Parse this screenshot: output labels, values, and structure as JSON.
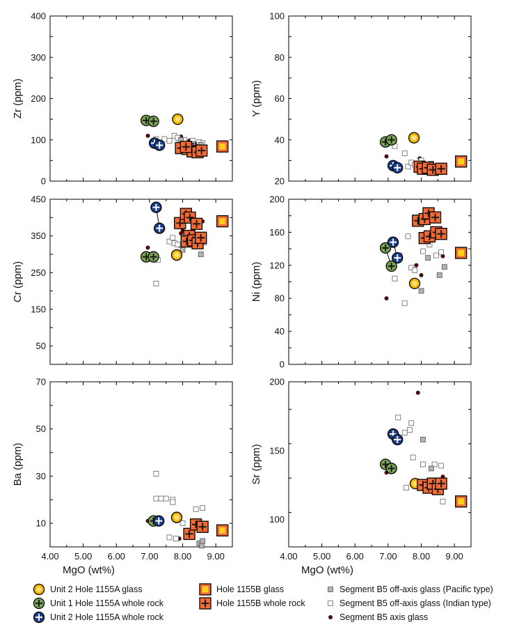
{
  "figure": {
    "xlabel": "MgO (wt%)",
    "xticks": [
      "4.00",
      "5.00",
      "6.00",
      "7.00",
      "8.00",
      "9.00"
    ]
  },
  "colors": {
    "unit2_glass_fill": "#f6b800",
    "unit2_glass_core": "#ffe27a",
    "unit1_wr_fill": "#7aa653",
    "unit2_wr_fill": "#1c3f8c",
    "hole1155b_fill": "#f26a35",
    "hole1155b_glass_core": "#ffd11a",
    "pacific": "#b3b3b3",
    "axis_glass": "#4a0d0d"
  },
  "legend": [
    {
      "key": "unit2_glass",
      "label": "Unit 2 Hole 1155A glass"
    },
    {
      "key": "unit1_wr",
      "label": "Unit 1 Hole 1155A whole rock"
    },
    {
      "key": "unit2_wr",
      "label": "Unit 2 Hole 1155A whole rock"
    },
    {
      "key": "hole1155b_glass",
      "label": "Hole 1155B glass"
    },
    {
      "key": "hole1155b_wr",
      "label": "Hole 1155B whole rock"
    },
    {
      "key": "pacific",
      "label": "Segment B5 off-axis glass (Pacific type)"
    },
    {
      "key": "indian",
      "label": "Segment B5 off-axis glass (Indian type)"
    },
    {
      "key": "axis",
      "label": "Segment B5 axis glass"
    }
  ],
  "chart_data": [
    {
      "type": "scatter",
      "id": "zr",
      "ylabel": "Zr (ppm)",
      "xlim": [
        4,
        9.5
      ],
      "ylim": [
        0,
        400
      ],
      "yticks": [
        "0",
        "100",
        "200",
        "300",
        "400"
      ],
      "series": {
        "unit2_glass": [
          [
            7.85,
            150
          ]
        ],
        "unit1_wr": [
          [
            6.9,
            147
          ],
          [
            7.12,
            145
          ]
        ],
        "unit2_wr": [
          [
            7.15,
            92
          ],
          [
            7.3,
            87
          ]
        ],
        "hole1155b_glass": [
          [
            9.2,
            84
          ]
        ],
        "hole1155b_wr": [
          [
            7.95,
            80
          ],
          [
            8.15,
            78
          ],
          [
            8.3,
            72
          ],
          [
            8.45,
            70
          ],
          [
            8.57,
            74
          ],
          [
            8.1,
            83
          ]
        ],
        "pacific": [
          [
            7.95,
            100
          ],
          [
            8.3,
            90
          ],
          [
            8.55,
            88
          ]
        ],
        "indian": [
          [
            7.2,
            102
          ],
          [
            7.45,
            102
          ],
          [
            7.6,
            98
          ],
          [
            7.75,
            110
          ],
          [
            7.9,
            95
          ],
          [
            8.05,
            100
          ],
          [
            8.3,
            98
          ],
          [
            8.5,
            95
          ],
          [
            8.6,
            92
          ],
          [
            7.85,
            105
          ]
        ],
        "axis": [
          [
            6.95,
            110
          ],
          [
            7.95,
            108
          ],
          [
            8.2,
            98
          ],
          [
            8.4,
            90
          ],
          [
            8.55,
            95
          ]
        ]
      }
    },
    {
      "type": "scatter",
      "id": "y",
      "ylabel": "Y (ppm)",
      "xlim": [
        4,
        9.5
      ],
      "ylim": [
        20,
        100
      ],
      "yticks": [
        "20",
        "40",
        "60",
        "80",
        "100"
      ],
      "series": {
        "unit2_glass": [
          [
            7.78,
            41
          ]
        ],
        "unit1_wr": [
          [
            6.92,
            39
          ],
          [
            7.1,
            40
          ]
        ],
        "unit2_wr": [
          [
            7.15,
            27.5
          ],
          [
            7.28,
            26.5
          ]
        ],
        "hole1155b_glass": [
          [
            9.2,
            29.5
          ]
        ],
        "hole1155b_wr": [
          [
            7.95,
            27
          ],
          [
            8.05,
            26
          ],
          [
            8.2,
            26.5
          ],
          [
            8.35,
            25.5
          ],
          [
            8.6,
            26
          ]
        ],
        "pacific": [
          [
            8.3,
            28.5
          ],
          [
            8.6,
            26.5
          ]
        ],
        "indian": [
          [
            7.2,
            37
          ],
          [
            7.5,
            33.5
          ],
          [
            7.6,
            27
          ],
          [
            7.7,
            29
          ],
          [
            7.8,
            28
          ],
          [
            8.0,
            30
          ],
          [
            8.3,
            25
          ],
          [
            8.5,
            26
          ],
          [
            8.65,
            25
          ],
          [
            7.9,
            26
          ]
        ],
        "axis": [
          [
            6.95,
            32
          ],
          [
            7.95,
            31
          ],
          [
            8.3,
            28
          ],
          [
            8.6,
            24
          ]
        ]
      }
    },
    {
      "type": "scatter",
      "id": "cr",
      "ylabel": "Cr (ppm)",
      "xlim": [
        4,
        9.5
      ],
      "ylim": [
        0,
        450
      ],
      "yticks": [
        "50",
        "150",
        "250",
        "350",
        "450"
      ],
      "series": {
        "unit2_glass": [
          [
            7.82,
            298
          ]
        ],
        "unit1_wr": [
          [
            6.9,
            293
          ],
          [
            7.12,
            293
          ]
        ],
        "unit2_wr": [
          [
            7.2,
            428
          ],
          [
            7.3,
            371
          ]
        ],
        "hole1155b_glass": [
          [
            9.2,
            390
          ]
        ],
        "hole1155b_wr": [
          [
            7.92,
            385
          ],
          [
            8.1,
            410
          ],
          [
            8.22,
            400
          ],
          [
            8.42,
            383
          ],
          [
            8.2,
            350
          ],
          [
            8.12,
            335
          ],
          [
            8.32,
            338
          ],
          [
            8.45,
            330
          ],
          [
            8.55,
            345
          ]
        ],
        "pacific": [
          [
            8.0,
            312
          ],
          [
            8.55,
            300
          ],
          [
            8.62,
            335
          ]
        ],
        "indian": [
          [
            7.2,
            220
          ],
          [
            7.25,
            285
          ],
          [
            7.6,
            335
          ],
          [
            7.7,
            345
          ],
          [
            7.75,
            330
          ],
          [
            7.95,
            325
          ],
          [
            8.0,
            315
          ],
          [
            8.3,
            342
          ],
          [
            8.4,
            338
          ],
          [
            8.65,
            332
          ],
          [
            7.85,
            327
          ]
        ],
        "axis": [
          [
            6.95,
            318
          ],
          [
            7.95,
            357
          ],
          [
            8.0,
            365
          ],
          [
            8.6,
            390
          ]
        ]
      }
    },
    {
      "type": "scatter",
      "id": "ni",
      "ylabel": "Ni (ppm)",
      "xlim": [
        4,
        9.5
      ],
      "ylim": [
        0,
        200
      ],
      "yticks": [
        "0",
        "40",
        "80",
        "120",
        "160",
        "200"
      ],
      "series": {
        "unit2_glass": [
          [
            7.8,
            98
          ]
        ],
        "unit1_wr": [
          [
            6.92,
            141
          ],
          [
            7.1,
            119
          ]
        ],
        "unit2_wr": [
          [
            7.15,
            148
          ],
          [
            7.28,
            129
          ]
        ],
        "hole1155b_glass": [
          [
            9.2,
            135
          ]
        ],
        "hole1155b_wr": [
          [
            7.9,
            174
          ],
          [
            8.1,
            176
          ],
          [
            8.22,
            183
          ],
          [
            8.42,
            178
          ],
          [
            8.1,
            153
          ],
          [
            8.25,
            155
          ],
          [
            8.45,
            160
          ],
          [
            8.6,
            158
          ]
        ],
        "pacific": [
          [
            8.0,
            89
          ],
          [
            8.2,
            129
          ],
          [
            8.55,
            108
          ],
          [
            8.7,
            118
          ]
        ],
        "indian": [
          [
            7.2,
            104
          ],
          [
            7.35,
            132
          ],
          [
            7.5,
            74
          ],
          [
            7.6,
            155
          ],
          [
            7.7,
            117
          ],
          [
            7.8,
            114
          ],
          [
            8.05,
            137
          ],
          [
            8.25,
            145
          ],
          [
            8.45,
            132
          ],
          [
            8.6,
            136
          ]
        ],
        "axis": [
          [
            6.95,
            80
          ],
          [
            7.85,
            120
          ],
          [
            8.0,
            108
          ],
          [
            8.65,
            131
          ]
        ]
      }
    },
    {
      "type": "scatter",
      "id": "ba",
      "ylabel": "Ba (ppm)",
      "xlim": [
        4,
        9.5
      ],
      "ylim": [
        0,
        70
      ],
      "yticks": [
        "10",
        "30",
        "50",
        "70"
      ],
      "series": {
        "unit2_glass": [
          [
            7.82,
            12.5
          ]
        ],
        "unit1_wr": [
          [
            7.12,
            11
          ]
        ],
        "unit2_wr": [
          [
            7.28,
            11
          ]
        ],
        "hole1155b_glass": [
          [
            9.2,
            7
          ]
        ],
        "hole1155b_wr": [
          [
            8.2,
            5.5
          ],
          [
            8.4,
            9.5
          ],
          [
            8.6,
            8.5
          ]
        ],
        "pacific": [
          [
            8.5,
            1.5
          ],
          [
            8.58,
            0.5
          ],
          [
            8.6,
            2.5
          ],
          [
            8.2,
            4.5
          ]
        ],
        "indian": [
          [
            7.2,
            31
          ],
          [
            7.2,
            20.5
          ],
          [
            7.35,
            20.5
          ],
          [
            7.5,
            20.5
          ],
          [
            7.7,
            20
          ],
          [
            7.7,
            19
          ],
          [
            7.6,
            4
          ],
          [
            7.8,
            3.5
          ],
          [
            8.0,
            10
          ],
          [
            8.4,
            16
          ],
          [
            8.6,
            16.5
          ]
        ],
        "axis": [
          [
            6.95,
            11
          ],
          [
            7.9,
            3.5
          ]
        ]
      }
    },
    {
      "type": "scatter",
      "id": "sr",
      "ylabel": "Sr (ppm)",
      "xlim": [
        4,
        9.5
      ],
      "ylim": [
        80,
        200
      ],
      "yticks": [
        "100",
        "150",
        "200"
      ],
      "series": {
        "unit2_glass": [
          [
            7.82,
            126
          ]
        ],
        "unit1_wr": [
          [
            6.92,
            140
          ],
          [
            7.1,
            137
          ]
        ],
        "unit2_wr": [
          [
            7.15,
            162
          ],
          [
            7.28,
            158
          ]
        ],
        "hole1155b_glass": [
          [
            9.2,
            113
          ]
        ],
        "hole1155b_wr": [
          [
            8.05,
            125
          ],
          [
            8.22,
            123
          ],
          [
            8.35,
            126
          ],
          [
            8.5,
            122
          ],
          [
            8.6,
            126
          ]
        ],
        "pacific": [
          [
            8.05,
            158
          ],
          [
            8.3,
            137
          ],
          [
            8.6,
            122
          ]
        ],
        "indian": [
          [
            7.3,
            174
          ],
          [
            7.5,
            163
          ],
          [
            7.7,
            170
          ],
          [
            7.65,
            165
          ],
          [
            7.75,
            145
          ],
          [
            8.05,
            140
          ],
          [
            8.4,
            140
          ],
          [
            8.6,
            139
          ],
          [
            7.55,
            123
          ],
          [
            8.65,
            113
          ],
          [
            7.95,
            124
          ]
        ],
        "axis": [
          [
            6.95,
            134
          ],
          [
            7.9,
            192
          ],
          [
            8.65,
            131
          ]
        ]
      }
    }
  ]
}
